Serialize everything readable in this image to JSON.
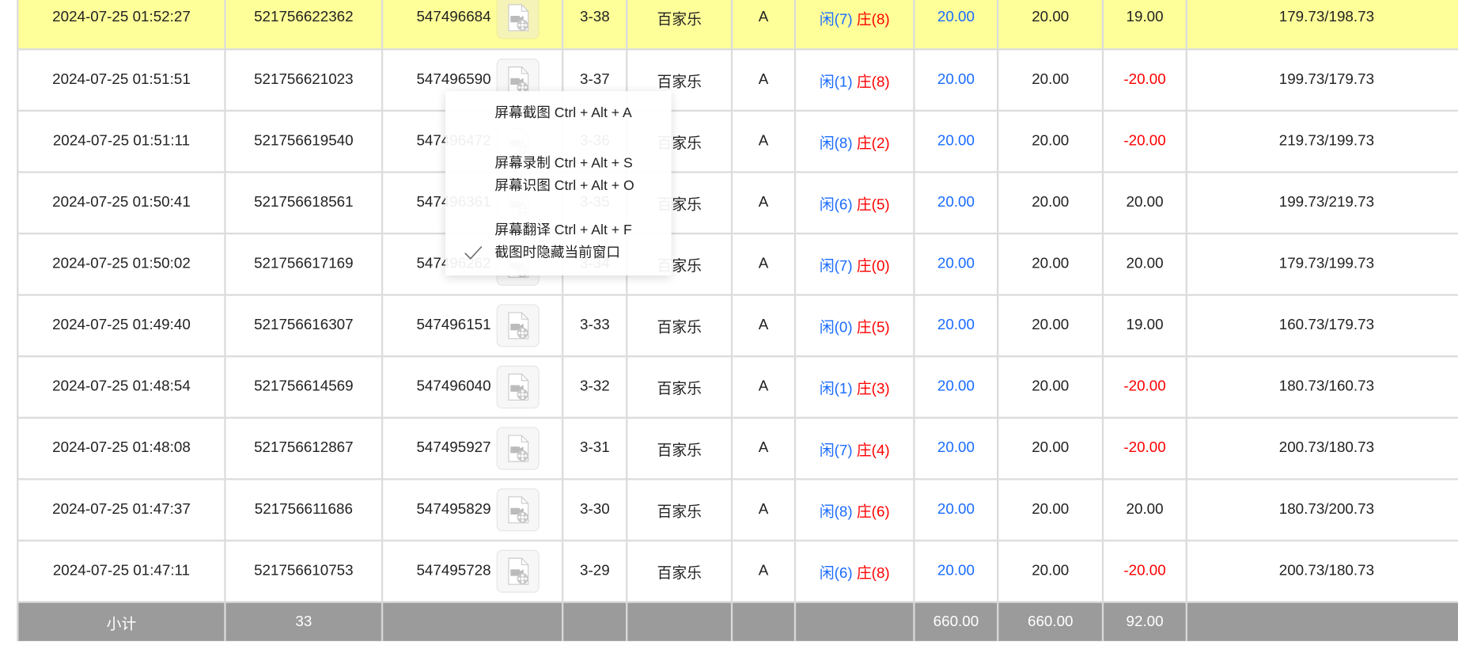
{
  "table": {
    "rows": [
      {
        "time": "2024-07-25 01:52:27",
        "bet_id": "521756622362",
        "round_id": "547496684",
        "shoe": "3-38",
        "game": "百家乐",
        "table": "A",
        "player": "闲(7)",
        "banker": "庄(8)",
        "bet": "20.00",
        "valid": "20.00",
        "win": "19.00",
        "win_neg": false,
        "balance": "179.73/198.73",
        "highlight": true
      },
      {
        "time": "2024-07-25 01:51:51",
        "bet_id": "521756621023",
        "round_id": "547496590",
        "shoe": "3-37",
        "game": "百家乐",
        "table": "A",
        "player": "闲(1)",
        "banker": "庄(8)",
        "bet": "20.00",
        "valid": "20.00",
        "win": "-20.00",
        "win_neg": true,
        "balance": "199.73/179.73"
      },
      {
        "time": "2024-07-25 01:51:11",
        "bet_id": "521756619540",
        "round_id": "547496472",
        "shoe": "3-36",
        "game": "百家乐",
        "table": "A",
        "player": "闲(8)",
        "banker": "庄(2)",
        "bet": "20.00",
        "valid": "20.00",
        "win": "-20.00",
        "win_neg": true,
        "balance": "219.73/199.73"
      },
      {
        "time": "2024-07-25 01:50:41",
        "bet_id": "521756618561",
        "round_id": "547496361",
        "shoe": "3-35",
        "game": "百家乐",
        "table": "A",
        "player": "闲(6)",
        "banker": "庄(5)",
        "bet": "20.00",
        "valid": "20.00",
        "win": "20.00",
        "win_neg": false,
        "balance": "199.73/219.73"
      },
      {
        "time": "2024-07-25 01:50:02",
        "bet_id": "521756617169",
        "round_id": "547496262",
        "shoe": "3-34",
        "game": "百家乐",
        "table": "A",
        "player": "闲(7)",
        "banker": "庄(0)",
        "bet": "20.00",
        "valid": "20.00",
        "win": "20.00",
        "win_neg": false,
        "balance": "179.73/199.73"
      },
      {
        "time": "2024-07-25 01:49:40",
        "bet_id": "521756616307",
        "round_id": "547496151",
        "shoe": "3-33",
        "game": "百家乐",
        "table": "A",
        "player": "闲(0)",
        "banker": "庄(5)",
        "bet": "20.00",
        "valid": "20.00",
        "win": "19.00",
        "win_neg": false,
        "balance": "160.73/179.73"
      },
      {
        "time": "2024-07-25 01:48:54",
        "bet_id": "521756614569",
        "round_id": "547496040",
        "shoe": "3-32",
        "game": "百家乐",
        "table": "A",
        "player": "闲(1)",
        "banker": "庄(3)",
        "bet": "20.00",
        "valid": "20.00",
        "win": "-20.00",
        "win_neg": true,
        "balance": "180.73/160.73"
      },
      {
        "time": "2024-07-25 01:48:08",
        "bet_id": "521756612867",
        "round_id": "547495927",
        "shoe": "3-31",
        "game": "百家乐",
        "table": "A",
        "player": "闲(7)",
        "banker": "庄(4)",
        "bet": "20.00",
        "valid": "20.00",
        "win": "-20.00",
        "win_neg": true,
        "balance": "200.73/180.73"
      },
      {
        "time": "2024-07-25 01:47:37",
        "bet_id": "521756611686",
        "round_id": "547495829",
        "shoe": "3-30",
        "game": "百家乐",
        "table": "A",
        "player": "闲(8)",
        "banker": "庄(6)",
        "bet": "20.00",
        "valid": "20.00",
        "win": "20.00",
        "win_neg": false,
        "balance": "180.73/200.73"
      },
      {
        "time": "2024-07-25 01:47:11",
        "bet_id": "521756610753",
        "round_id": "547495728",
        "shoe": "3-29",
        "game": "百家乐",
        "table": "A",
        "player": "闲(6)",
        "banker": "庄(8)",
        "bet": "20.00",
        "valid": "20.00",
        "win": "-20.00",
        "win_neg": true,
        "balance": "200.73/180.73"
      }
    ],
    "footer": {
      "label": "小计",
      "count": "33",
      "bet_total": "660.00",
      "valid_total": "660.00",
      "win_total": "92.00"
    }
  },
  "context_menu": {
    "items": [
      {
        "label": "屏幕截图 Ctrl + Alt + A"
      },
      {
        "label": "屏幕录制 Ctrl + Alt + S"
      },
      {
        "label": "屏幕识图 Ctrl + Alt + O"
      },
      {
        "label": "屏幕翻译 Ctrl + Alt + F"
      },
      {
        "label": "截图时隐藏当前窗口",
        "checked": true
      }
    ]
  },
  "colors": {
    "highlight_row": "#ffff99",
    "player": "#1a6cff",
    "banker": "#ff0000",
    "negative": "#ff0000",
    "footer": "#9b9b9b"
  }
}
